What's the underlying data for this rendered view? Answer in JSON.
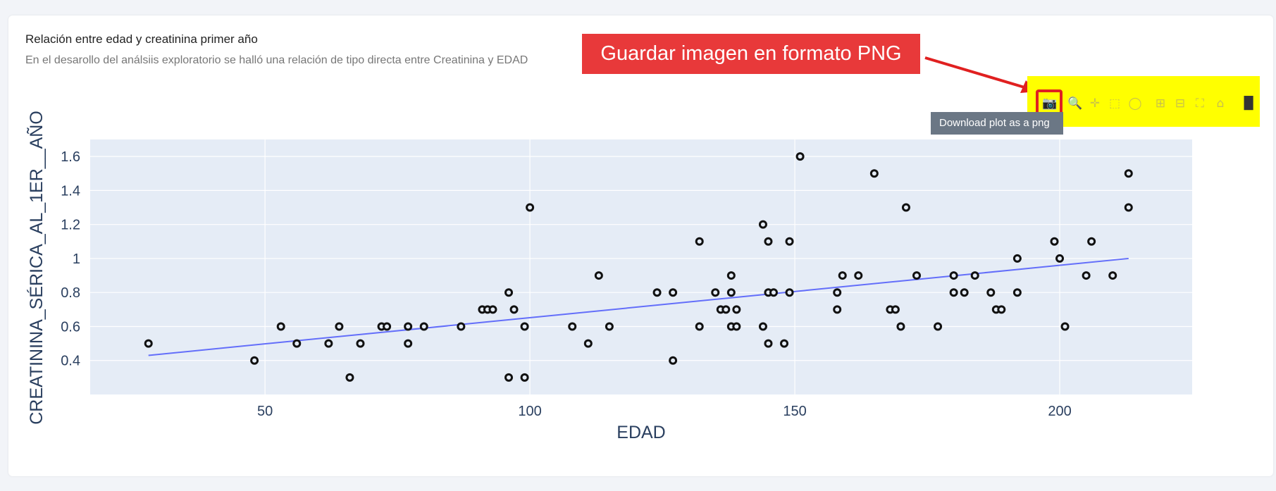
{
  "card": {
    "title": "Relación entre edad y creatinina primer año",
    "subtitle": "En el desarollo del análsiis exploratorio se halló una relación de tipo directa entre Creatinina y EDAD"
  },
  "annotation": {
    "callout_text": "Guardar imagen en formato PNG",
    "tooltip_text": "Download plot as a png",
    "highlight_color": "#ffff00",
    "callout_color": "#e8393a"
  },
  "toolbar": {
    "icons": [
      "camera-icon",
      "zoom-icon",
      "pan-icon",
      "box-select-icon",
      "lasso-icon",
      "zoom-in-icon",
      "zoom-out-icon",
      "autoscale-icon",
      "reset-axes-icon",
      "plotly-logo-icon"
    ]
  },
  "chart_data": {
    "type": "scatter",
    "xlabel": "EDAD",
    "ylabel": "CREATININA_SÉRICA_AL_1ER__AÑO",
    "xlim": [
      17,
      225
    ],
    "ylim": [
      0.2,
      1.7
    ],
    "x_ticks": [
      50,
      100,
      150,
      200
    ],
    "y_ticks": [
      0.4,
      0.6,
      0.8,
      1,
      1.2,
      1.4,
      1.6
    ],
    "x_tick_labels": [
      "50",
      "100",
      "150",
      "200"
    ],
    "y_tick_labels": [
      "0.4",
      "0.6",
      "0.8",
      "1",
      "1.2",
      "1.4",
      "1.6"
    ],
    "grid": true,
    "plot_bgcolor": "#e5ecf6",
    "point_color": "#111111",
    "trend_color": "#636efa",
    "trendline": {
      "x": [
        28,
        213
      ],
      "y": [
        0.43,
        1.0
      ]
    },
    "points": [
      [
        28,
        0.5
      ],
      [
        48,
        0.4
      ],
      [
        53,
        0.6
      ],
      [
        56,
        0.5
      ],
      [
        62,
        0.5
      ],
      [
        64,
        0.6
      ],
      [
        66,
        0.3
      ],
      [
        68,
        0.5
      ],
      [
        72,
        0.6
      ],
      [
        73,
        0.6
      ],
      [
        77,
        0.6
      ],
      [
        77,
        0.5
      ],
      [
        80,
        0.6
      ],
      [
        87,
        0.6
      ],
      [
        91,
        0.7
      ],
      [
        92,
        0.7
      ],
      [
        93,
        0.7
      ],
      [
        96,
        0.8
      ],
      [
        96,
        0.3
      ],
      [
        97,
        0.7
      ],
      [
        99,
        0.6
      ],
      [
        99,
        0.3
      ],
      [
        100,
        1.3
      ],
      [
        108,
        0.6
      ],
      [
        111,
        0.5
      ],
      [
        113,
        0.9
      ],
      [
        115,
        0.6
      ],
      [
        124,
        0.8
      ],
      [
        127,
        0.8
      ],
      [
        127,
        0.4
      ],
      [
        132,
        1.1
      ],
      [
        132,
        0.6
      ],
      [
        135,
        0.8
      ],
      [
        136,
        0.7
      ],
      [
        137,
        0.7
      ],
      [
        138,
        0.9
      ],
      [
        138,
        0.8
      ],
      [
        138,
        0.6
      ],
      [
        139,
        0.7
      ],
      [
        139,
        0.6
      ],
      [
        144,
        1.2
      ],
      [
        144,
        0.6
      ],
      [
        145,
        1.1
      ],
      [
        145,
        0.8
      ],
      [
        145,
        0.5
      ],
      [
        146,
        0.8
      ],
      [
        148,
        0.5
      ],
      [
        149,
        1.1
      ],
      [
        149,
        0.8
      ],
      [
        151,
        1.6
      ],
      [
        158,
        0.8
      ],
      [
        158,
        0.7
      ],
      [
        159,
        0.9
      ],
      [
        162,
        0.9
      ],
      [
        165,
        1.5
      ],
      [
        168,
        0.7
      ],
      [
        169,
        0.7
      ],
      [
        170,
        0.6
      ],
      [
        171,
        1.3
      ],
      [
        173,
        0.9
      ],
      [
        177,
        0.6
      ],
      [
        180,
        0.9
      ],
      [
        180,
        0.8
      ],
      [
        182,
        0.8
      ],
      [
        184,
        0.9
      ],
      [
        187,
        0.8
      ],
      [
        188,
        0.7
      ],
      [
        189,
        0.7
      ],
      [
        192,
        1.0
      ],
      [
        192,
        0.8
      ],
      [
        199,
        1.1
      ],
      [
        200,
        1.0
      ],
      [
        201,
        0.6
      ],
      [
        205,
        0.9
      ],
      [
        206,
        1.1
      ],
      [
        210,
        0.9
      ],
      [
        213,
        1.5
      ],
      [
        213,
        1.3
      ]
    ]
  }
}
